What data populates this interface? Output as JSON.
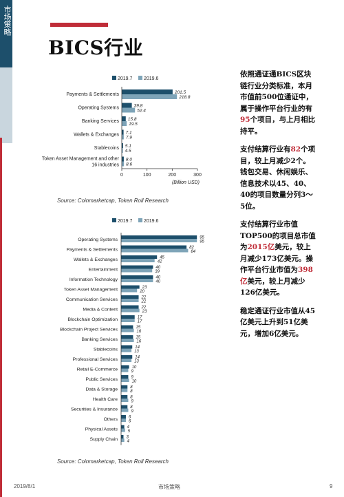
{
  "side_label": "市场策略",
  "page_title": "BICS行业",
  "paragraphs": [
    {
      "parts": [
        {
          "text": "依照通证通BICS区块链行业分类标准，本月市值前500位通证中，属于操作平台行业的有",
          "hl": false
        },
        {
          "text": "95",
          "hl": true
        },
        {
          "text": "个项目，与上月相比持平。",
          "hl": false
        }
      ]
    },
    {
      "parts": [
        {
          "text": "支付结算行业有",
          "hl": false
        },
        {
          "text": "82",
          "hl": true
        },
        {
          "text": "个项目，较上月减少2个。钱包交易、休闲娱乐、信息技术以45、40、40的项目数量分列3～5位。",
          "hl": false
        }
      ]
    },
    {
      "parts": [
        {
          "text": "支付结算行业市值TOP500的项目总市值为",
          "hl": false
        },
        {
          "text": "2015亿",
          "hl": true
        },
        {
          "text": "美元，较上月减少173亿美元。操作平台行业市值为",
          "hl": false
        },
        {
          "text": "398亿",
          "hl": true
        },
        {
          "text": "美元，较上月减少126亿美元。",
          "hl": false
        }
      ]
    },
    {
      "parts": [
        {
          "text": "稳定通证行业市值从45亿美元上升到51亿美元，增加6亿美元。",
          "hl": false
        }
      ]
    }
  ],
  "footer": {
    "date": "2019/8/1",
    "center": "市场策略",
    "page": "9"
  },
  "colors": {
    "series_a": "#1d4f6b",
    "series_b": "#7ea4b8",
    "accent": "#c02d38"
  },
  "chart_data": [
    {
      "type": "bar",
      "orientation": "horizontal",
      "legend": "top",
      "unit_label": "(Billion USD)",
      "categories": [
        "Payments & Settlements",
        "Operating Systems",
        "Banking Services",
        "Wallets & Exchanges",
        "Stablecoins",
        "Token Asset Management and other\n16 industries"
      ],
      "series": [
        {
          "name": "2019.7",
          "values": [
            201.5,
            39.8,
            15.8,
            7.1,
            5.1,
            8.0
          ],
          "labels": [
            "201.5",
            "39.8",
            "15.8",
            "7.1",
            "5.1",
            "8.0"
          ]
        },
        {
          "name": "2019.6",
          "values": [
            218.8,
            52.4,
            19.5,
            7.9,
            4.5,
            8.6
          ],
          "labels": [
            "218.8",
            "52.4",
            "19.5",
            "7.9",
            "4.5",
            "8.6"
          ]
        }
      ],
      "xlim": [
        0,
        300
      ],
      "xticks": [
        "0",
        "100",
        "200",
        "300"
      ],
      "source": "Source: Coinmarketcap, Token Roll Research"
    },
    {
      "type": "bar",
      "orientation": "horizontal",
      "legend": "top",
      "categories": [
        "Operating Systems",
        "Payments & Settlements",
        "Wallets & Exchanges",
        "Entertainment",
        "Information Technology",
        "Token Asset Management",
        "Communication Services",
        "Media & Content",
        "Blockchain Optimization",
        "Blockchain Project Services",
        "Banking Services",
        "Stablecoins",
        "Professional Services",
        "Retail E-Commerce",
        "Public Services",
        "Data & Storage",
        "Health Care",
        "Securities & Insurance",
        "Others",
        "Physical Assets",
        "Supply Chain"
      ],
      "series": [
        {
          "name": "2019.7",
          "values": [
            95,
            82,
            45,
            40,
            40,
            23,
            22,
            22,
            17,
            15,
            15,
            14,
            14,
            10,
            9,
            8,
            8,
            8,
            6,
            4,
            3
          ]
        },
        {
          "name": "2019.6",
          "values": [
            95,
            84,
            42,
            39,
            40,
            20,
            22,
            23,
            17,
            16,
            16,
            13,
            13,
            9,
            10,
            8,
            9,
            9,
            6,
            5,
            4
          ]
        }
      ],
      "xlim": [
        0,
        100
      ],
      "source": "Source: Coinmarketcap, Token Roll Research"
    }
  ]
}
